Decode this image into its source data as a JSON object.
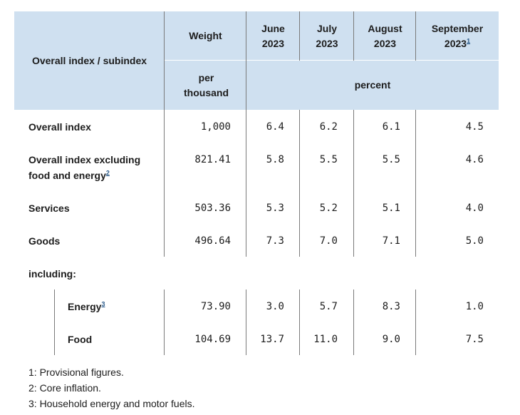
{
  "header": {
    "row_label": "Overall index / subindex",
    "weight": "Weight",
    "weight_unit": "per thousand",
    "months": [
      {
        "label": "June 2023",
        "ref": ""
      },
      {
        "label": "July 2023",
        "ref": ""
      },
      {
        "label": "August 2023",
        "ref": ""
      },
      {
        "label": "September 2023",
        "ref": "1"
      }
    ],
    "percent_unit": "percent"
  },
  "rows": [
    {
      "label": "Overall index",
      "ref": "",
      "weight": "1,000",
      "values": [
        "6.4",
        "6.2",
        "6.1",
        "4.5"
      ]
    },
    {
      "label_line1": "Overall index excluding",
      "label_line2": "food and energy",
      "ref": "2",
      "weight": "821.41",
      "values": [
        "5.8",
        "5.5",
        "5.5",
        "4.6"
      ]
    },
    {
      "label": "Services",
      "ref": "",
      "weight": "503.36",
      "values": [
        "5.3",
        "5.2",
        "5.1",
        "4.0"
      ]
    },
    {
      "label": "Goods",
      "ref": "",
      "weight": "496.64",
      "values": [
        "7.3",
        "7.0",
        "7.1",
        "5.0"
      ]
    }
  ],
  "including_label": "including:",
  "subrows": [
    {
      "label": "Energy",
      "ref": "3",
      "weight": "73.90",
      "values": [
        "3.0",
        "5.7",
        "8.3",
        "1.0"
      ]
    },
    {
      "label": "Food",
      "ref": "",
      "weight": "104.69",
      "values": [
        "13.7",
        "11.0",
        "9.0",
        "7.5"
      ]
    }
  ],
  "footnotes": [
    "1: Provisional figures.",
    "2: Core inflation.",
    "3: Household energy and motor fuels."
  ]
}
